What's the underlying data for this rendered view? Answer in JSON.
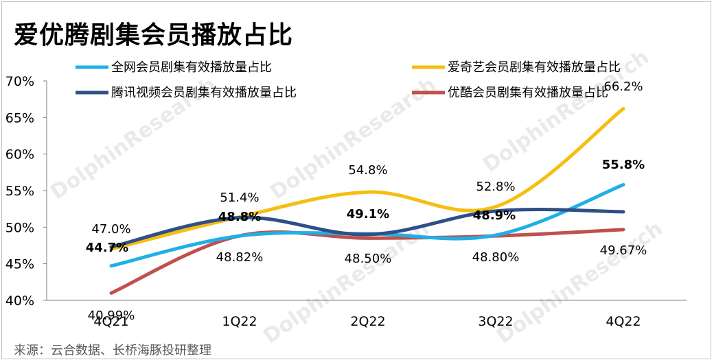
{
  "title": "爱优腾剧集会员播放占比",
  "source": "来源：云合数据、长桥海豚投研整理",
  "watermark": "DolphinResearch",
  "chart_data": {
    "type": "line",
    "categories": [
      "4Q21",
      "1Q22",
      "2Q22",
      "3Q22",
      "4Q22"
    ],
    "ylim": [
      40,
      70
    ],
    "yticks": [
      40,
      45,
      50,
      55,
      60,
      65,
      70
    ],
    "ytick_labels": [
      "40%",
      "45%",
      "50%",
      "55%",
      "60%",
      "65%",
      "70%"
    ],
    "legend_position": "top",
    "series": [
      {
        "key": "all",
        "name": "全网会员剧集有效播放量占比",
        "color": "#1FB0E6",
        "values": [
          44.7,
          48.8,
          49.1,
          48.9,
          55.8
        ],
        "labels": [
          "44.7%",
          "48.8%",
          "49.1%",
          "48.9%",
          "55.8%"
        ],
        "bold_labels": true
      },
      {
        "key": "iqiyi",
        "name": "爱奇艺会员剧集有效播放量占比",
        "color": "#F5BE10",
        "values": [
          47.0,
          51.4,
          54.8,
          52.8,
          66.2
        ],
        "labels": [
          "47.0%",
          "51.4%",
          "54.8%",
          "52.8%",
          "66.2%"
        ],
        "bold_labels": false
      },
      {
        "key": "tencent",
        "name": "腾讯视频会员剧集有效播放量占比",
        "color": "#2F4F86",
        "values": [
          47.3,
          51.3,
          49.0,
          52.2,
          52.1
        ],
        "labels": [],
        "bold_labels": false
      },
      {
        "key": "youku",
        "name": "优酷会员剧集有效播放量占比",
        "color": "#C0504D",
        "values": [
          40.99,
          48.82,
          48.5,
          48.8,
          49.67
        ],
        "labels": [
          "40.99%",
          "48.82%",
          "48.50%",
          "48.80%",
          "49.67%"
        ],
        "bold_labels": false
      }
    ]
  }
}
